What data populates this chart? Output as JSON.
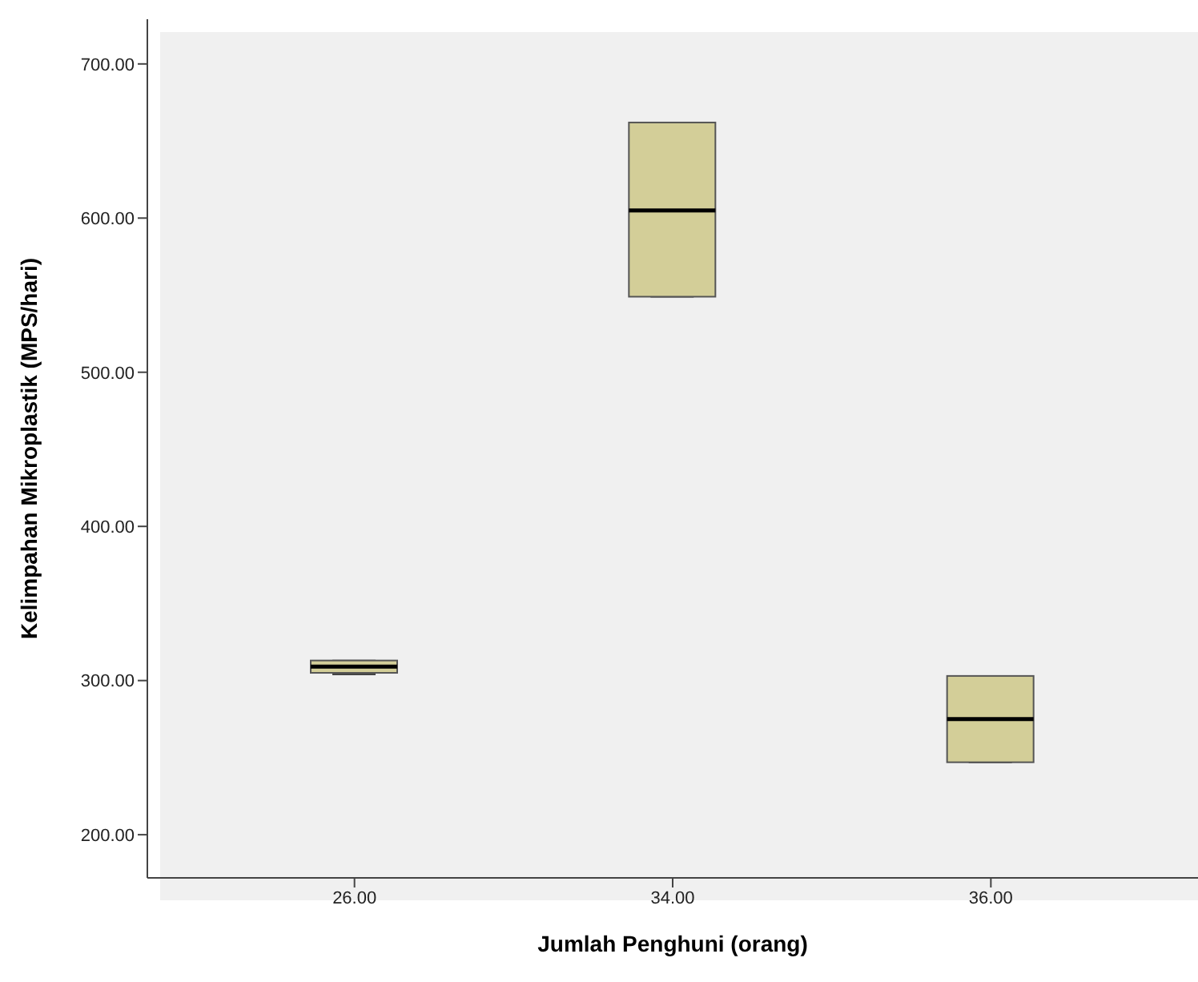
{
  "chart_data": {
    "type": "box",
    "xlabel": "Jumlah Penghuni (orang)",
    "ylabel": "Kelimpahan Mikroplastik (MPS/hari)",
    "categories": [
      "26.00",
      "34.00",
      "36.00"
    ],
    "boxes": [
      {
        "low": 304,
        "q1": 305,
        "median": 309,
        "q3": 313,
        "high": 313
      },
      {
        "low": 549,
        "q1": 549,
        "median": 605,
        "q3": 662,
        "high": 662
      },
      {
        "low": 247,
        "q1": 247,
        "median": 275,
        "q3": 303,
        "high": 303
      }
    ],
    "color": "#d3ce98",
    "ylim": [
      172,
      729
    ],
    "yticks": [
      {
        "value": 200,
        "label": "200.00"
      },
      {
        "value": 300,
        "label": "300.00"
      },
      {
        "value": 400,
        "label": "400.00"
      },
      {
        "value": 500,
        "label": "500.00"
      },
      {
        "value": 600,
        "label": "600.00"
      },
      {
        "value": 700,
        "label": "700.00"
      }
    ],
    "grid": false
  }
}
